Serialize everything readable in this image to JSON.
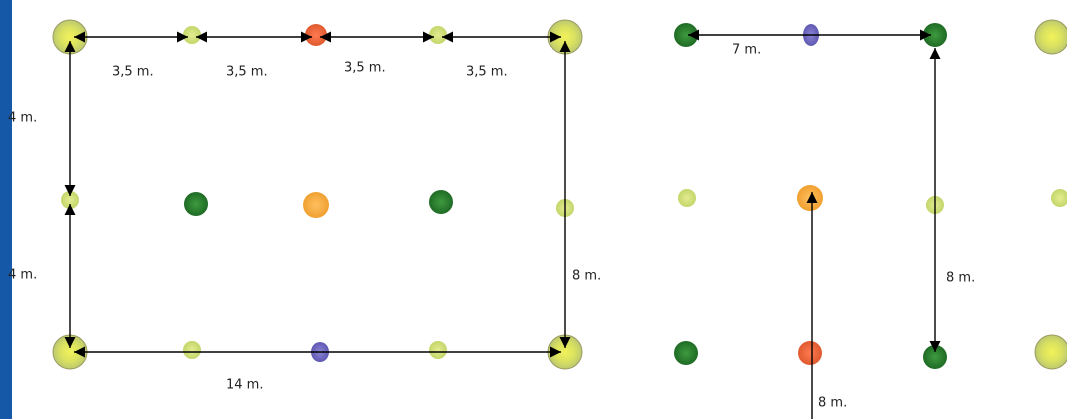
{
  "labels": {
    "top": [
      "3,5 m.",
      "3,5 m.",
      "3,5 m.",
      "3,5 m."
    ],
    "left": [
      "4 m.",
      "4 m."
    ],
    "right": [
      "8 m.",
      "8 m.",
      "8 m."
    ],
    "row_spacing": "7 m.",
    "bottom": "14 m."
  }
}
